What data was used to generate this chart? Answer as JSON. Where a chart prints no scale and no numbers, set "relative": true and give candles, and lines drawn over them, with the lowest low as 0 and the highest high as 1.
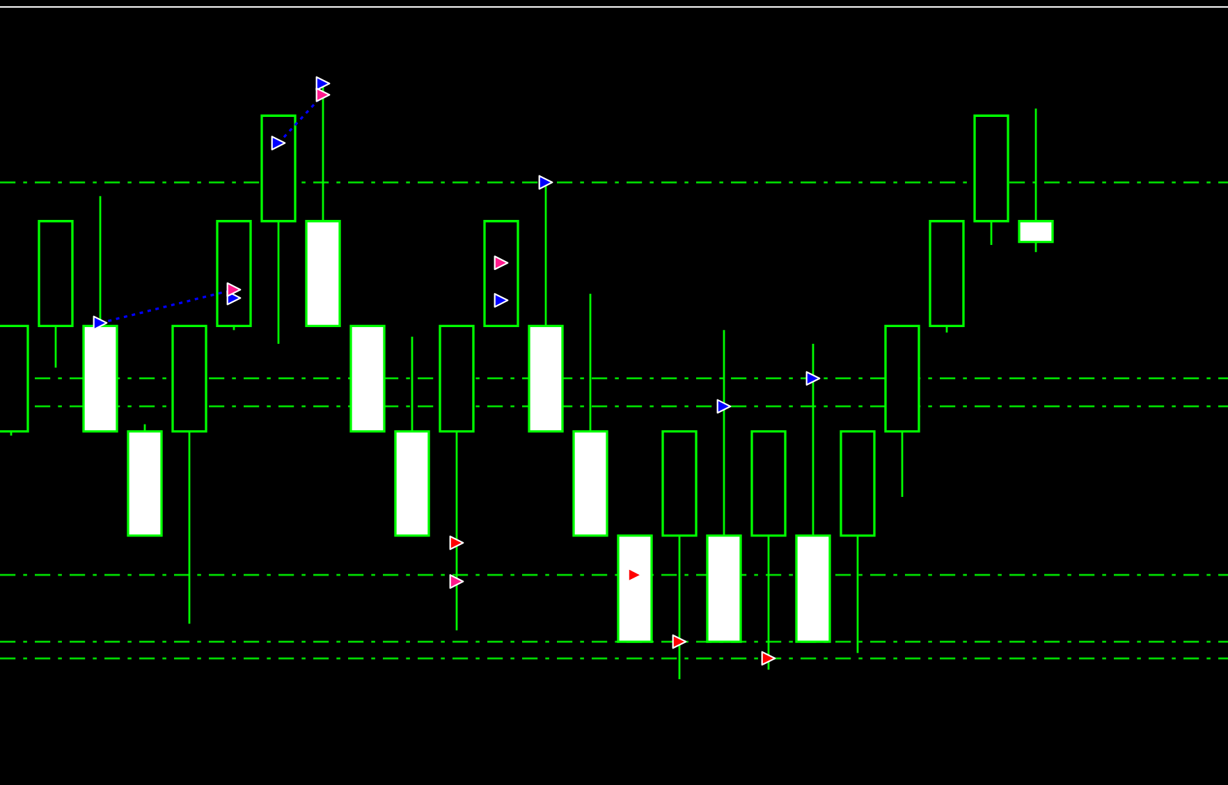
{
  "chart_data": {
    "type": "candlestick",
    "relative": true,
    "categories": [
      null,
      null,
      null,
      null,
      null,
      null,
      null,
      null,
      null,
      null,
      null,
      null,
      null,
      null,
      null,
      null,
      null,
      null,
      null,
      null,
      null,
      null,
      null,
      null
    ],
    "color": "#00ff00",
    "colors": [
      "#000000",
      "#000000",
      "#ffffff",
      "#ffffff",
      "#000000",
      "#000000",
      "#000000",
      "#ffffff",
      "#ffffff",
      "#ffffff",
      "#000000",
      "#000000",
      "#ffffff",
      "#ffffff",
      "#ffffff",
      "#000000",
      "#ffffff",
      "#000000",
      "#ffffff",
      "#000000",
      "#000000",
      "#000000",
      "#000000",
      "#ffffff"
    ],
    "ohlc": [
      [
        0.416,
        0.593,
        0.409,
        0.593
      ],
      [
        0.593,
        0.769,
        0.523,
        0.769
      ],
      [
        0.593,
        0.811,
        0.416,
        0.416
      ],
      [
        0.416,
        0.428,
        0.241,
        0.241
      ],
      [
        0.416,
        0.593,
        0.093,
        0.593
      ],
      [
        0.593,
        0.769,
        0.586,
        0.769
      ],
      [
        0.769,
        0.946,
        0.563,
        0.946
      ],
      [
        0.769,
        1.0,
        0.593,
        0.593
      ],
      [
        0.593,
        0.593,
        0.416,
        0.416
      ],
      [
        0.416,
        0.575,
        0.241,
        0.241
      ],
      [
        0.416,
        0.593,
        0.082,
        0.593
      ],
      [
        0.593,
        0.769,
        0.593,
        0.769
      ],
      [
        0.593,
        0.834,
        0.416,
        0.416
      ],
      [
        0.416,
        0.647,
        0.241,
        0.241
      ],
      [
        0.241,
        0.241,
        0.063,
        0.063
      ],
      [
        0.241,
        0.416,
        0.0,
        0.416
      ],
      [
        0.241,
        0.586,
        0.063,
        0.063
      ],
      [
        0.241,
        0.416,
        0.016,
        0.416
      ],
      [
        0.241,
        0.563,
        0.063,
        0.063
      ],
      [
        0.241,
        0.416,
        0.044,
        0.416
      ],
      [
        0.416,
        0.593,
        0.306,
        0.593
      ],
      [
        0.593,
        0.769,
        0.582,
        0.769
      ],
      [
        0.769,
        0.946,
        0.729,
        0.946
      ],
      [
        0.769,
        0.958,
        0.717,
        0.734
      ]
    ],
    "series": [
      {
        "type": "line",
        "color": "#0000ff",
        "line_style": "dotted",
        "values": [
          null,
          null,
          0.598,
          null,
          null,
          0.654,
          null,
          null,
          null,
          null,
          null,
          null,
          null,
          null,
          null,
          null,
          null,
          null,
          null,
          null,
          null,
          null,
          null,
          null
        ]
      },
      {
        "type": "line",
        "color": "#0000ff",
        "line_style": "dotted",
        "values": [
          null,
          null,
          null,
          null,
          null,
          null,
          0.9,
          0.981,
          null,
          null,
          null,
          null,
          null,
          null,
          null,
          null,
          null,
          null,
          null,
          null,
          null,
          null,
          null,
          null
        ]
      },
      {
        "type": "scatter",
        "color": "#0000ff",
        "marker": "triangle",
        "values": [
          null,
          null,
          0.598,
          null,
          null,
          0.64,
          0.9,
          1.0,
          null,
          null,
          null,
          0.636,
          0.834,
          null,
          null,
          null,
          0.458,
          null,
          0.505,
          null,
          null,
          null,
          null,
          null
        ]
      },
      {
        "type": "scatter",
        "color": "#ff0000",
        "marker": "triangle",
        "values": [
          null,
          null,
          null,
          null,
          null,
          null,
          null,
          null,
          null,
          null,
          0.229,
          null,
          null,
          null,
          0.175,
          0.063,
          null,
          0.035,
          null,
          null,
          null,
          null,
          null,
          null
        ]
      },
      {
        "type": "scatter",
        "color": "#ff1a8c",
        "marker": "triangle",
        "values": [
          null,
          null,
          null,
          null,
          null,
          0.654,
          null,
          0.981,
          null,
          null,
          0.164,
          0.699,
          null,
          null,
          null,
          null,
          null,
          null,
          null,
          null,
          null,
          null,
          null,
          null
        ]
      }
    ],
    "ref_lines": [
      {
        "axis": "y",
        "value": 0.834,
        "color": "#00dd00",
        "line_style": "dashed"
      },
      {
        "axis": "y",
        "value": 0.505,
        "color": "#00dd00",
        "line_style": "dashed"
      },
      {
        "axis": "y",
        "value": 0.458,
        "color": "#00dd00",
        "line_style": "dashed"
      },
      {
        "axis": "y",
        "value": 0.175,
        "color": "#00dd00",
        "line_style": "dashed"
      },
      {
        "axis": "y",
        "value": 0.063,
        "color": "#00dd00",
        "line_style": "dashed"
      },
      {
        "axis": "y",
        "value": 0.035,
        "color": "#00dd00",
        "line_style": "dashed"
      }
    ]
  }
}
